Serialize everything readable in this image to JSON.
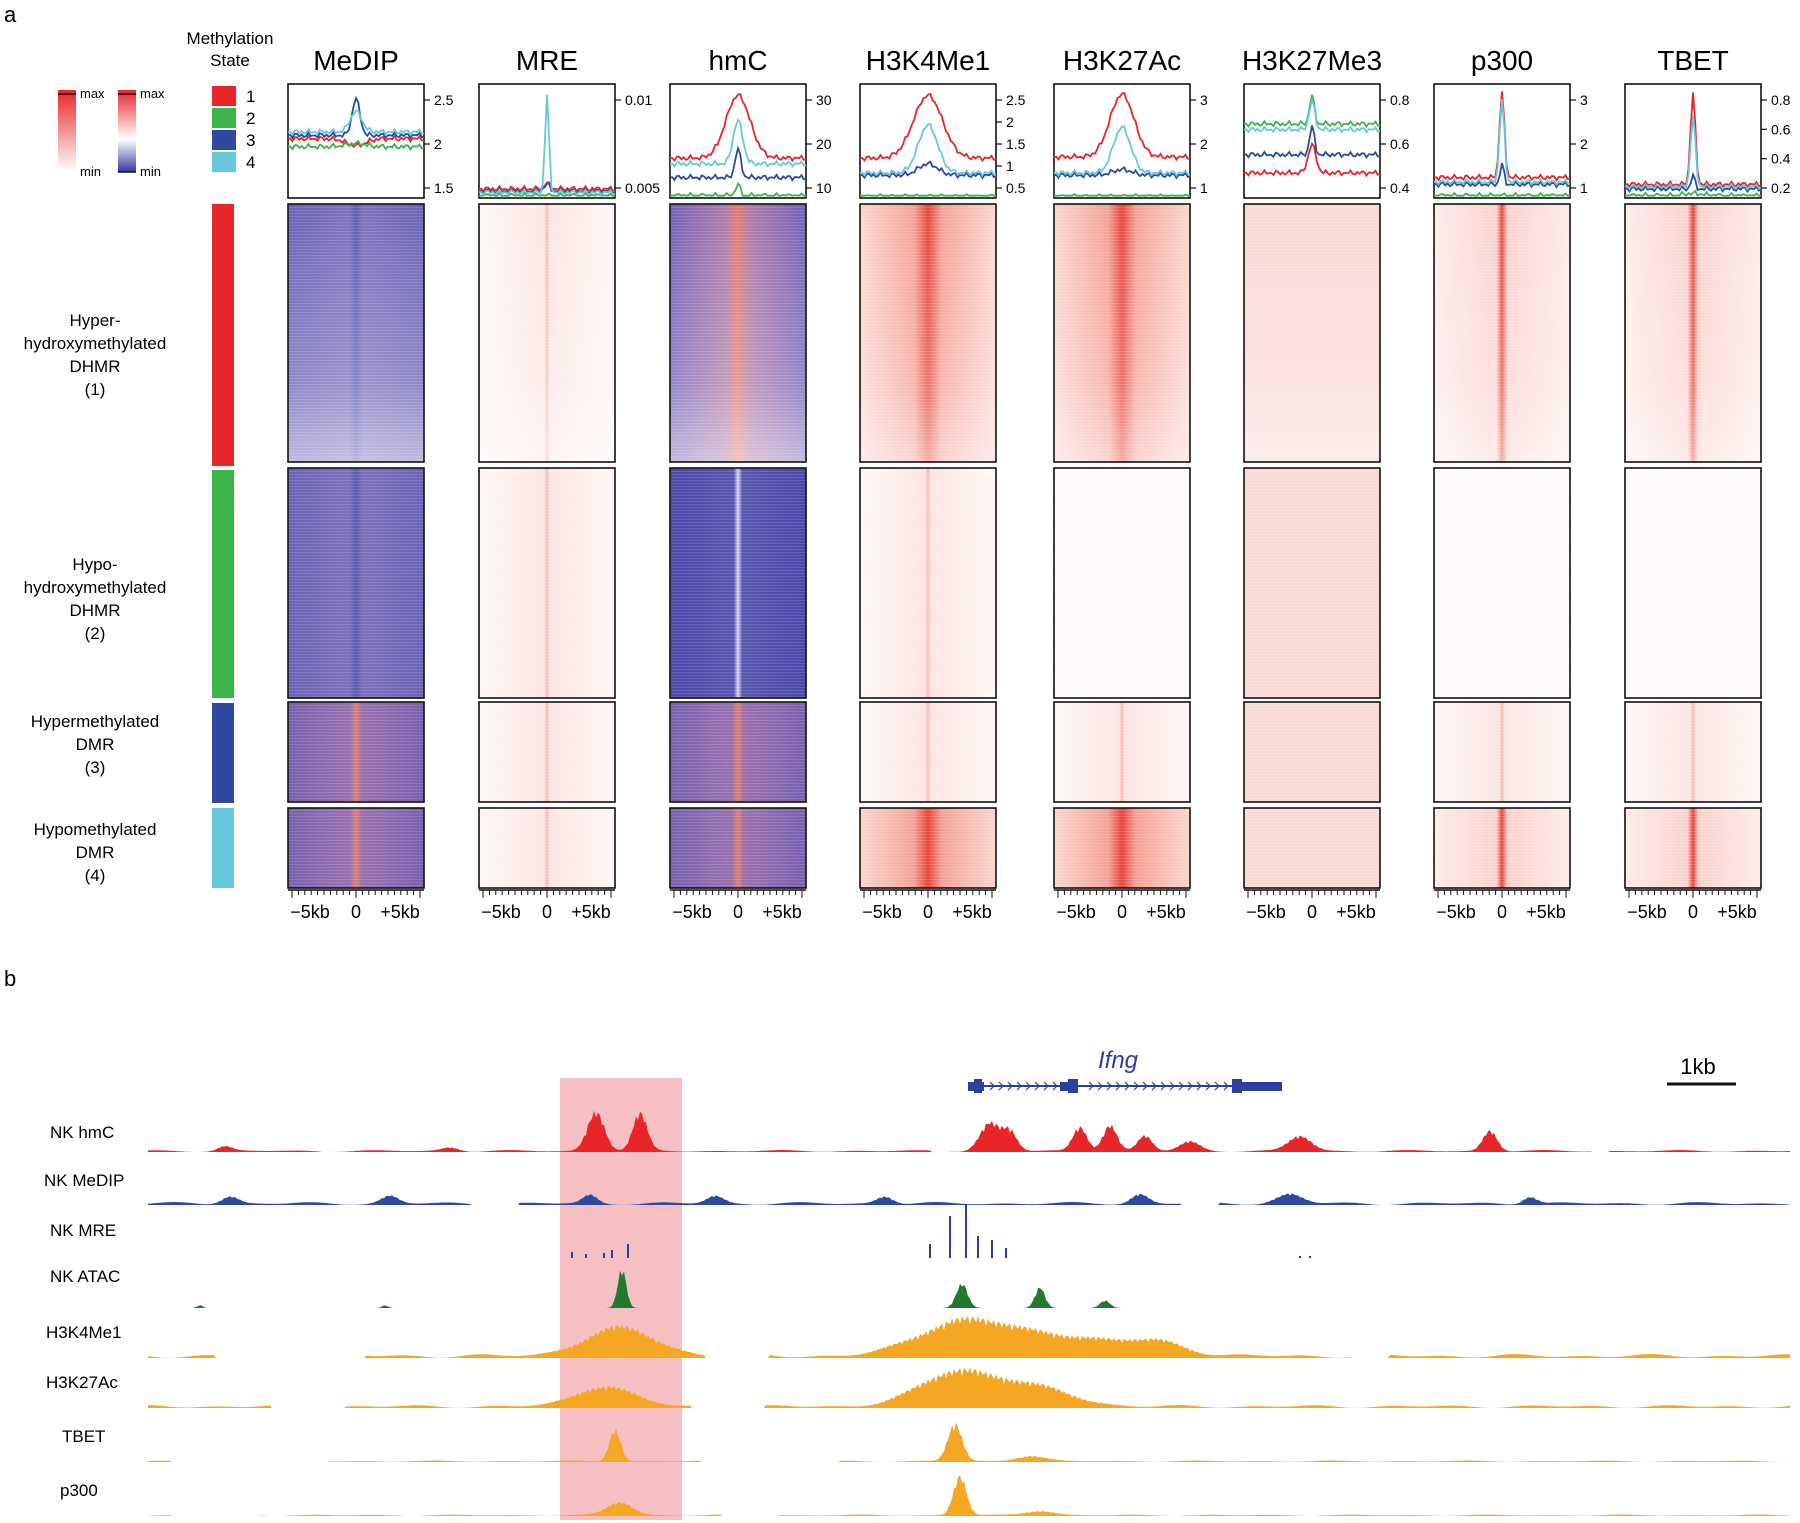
{
  "panel_a": {
    "label": "a",
    "legend": {
      "title_line1": "Methylation",
      "title_line2": "State",
      "states": [
        "1",
        "2",
        "3",
        "4"
      ],
      "scale_red": {
        "max": "max",
        "min": "min"
      },
      "scale_blue": {
        "max": "max",
        "min": "min"
      }
    },
    "group_labels": [
      [
        "Hyper-",
        "hydroxymethylated",
        "DHMR",
        "(1)"
      ],
      [
        "Hypo-",
        "hydroxymethylated",
        "DHMR",
        "(2)"
      ],
      [
        "Hypermethylated",
        "DMR",
        "(3)"
      ],
      [
        "Hypomethylated",
        "DMR",
        "(4)"
      ]
    ],
    "x_ticks": [
      "−5kb",
      "0",
      "+5kb"
    ],
    "columns": [
      {
        "name": "MeDIP",
        "yticks": [
          "2.5",
          "2",
          "1.5"
        ]
      },
      {
        "name": "MRE",
        "yticks": [
          "0.01",
          "0.005"
        ]
      },
      {
        "name": "hmC",
        "yticks": [
          "30",
          "20",
          "10"
        ]
      },
      {
        "name": "H3K4Me1",
        "yticks": [
          "2.5",
          "2",
          "1.5",
          "1",
          "0.5"
        ]
      },
      {
        "name": "H3K27Ac",
        "yticks": [
          "3",
          "2",
          "1"
        ]
      },
      {
        "name": "H3K27Me3",
        "yticks": [
          "0.8",
          "0.6",
          "0.4"
        ]
      },
      {
        "name": "p300",
        "yticks": [
          "3",
          "2",
          "1"
        ]
      },
      {
        "name": "TBET",
        "yticks": [
          "0.8",
          "0.6",
          "0.4",
          "0.2"
        ]
      }
    ]
  },
  "panel_b": {
    "label": "b",
    "gene": "Ifng",
    "scale_bar": "1kb",
    "tracks": [
      "NK hmC",
      "NK MeDIP",
      "NK MRE",
      "NK ATAC",
      "H3K4Me1",
      "H3K27Ac",
      "TBET",
      "p300"
    ]
  },
  "colors": {
    "state1": "#e8262a",
    "state2": "#3bb54a",
    "state3": "#2e4a9e",
    "state4": "#67c8dc",
    "heat_blue": "#5b5ab0",
    "heat_red": "#e8423a",
    "highlight": "#f5b5b8",
    "gene": "#2c3e9e",
    "atac": "#1f7a2e",
    "chip": "#f5a623"
  }
}
